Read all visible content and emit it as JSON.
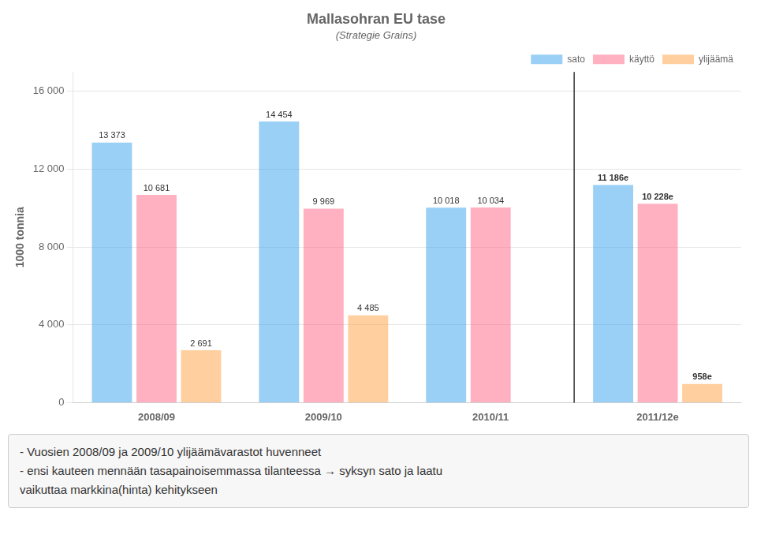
{
  "chart_data": {
    "type": "bar",
    "title": "Mallasohran EU tase",
    "subtitle": "(Strategie Grains)",
    "ylabel": "1000 tonnia",
    "categories": [
      "2008/09",
      "2009/10",
      "2010/11",
      "2011/12e"
    ],
    "series": [
      {
        "name": "sato",
        "values": [
          13373,
          14454,
          10018,
          11186
        ],
        "value_labels": [
          "13 373",
          "14 454",
          "10 018",
          "11 186e"
        ]
      },
      {
        "name": "käyttö",
        "values": [
          10681,
          9969,
          10034,
          10228
        ],
        "value_labels": [
          "10 681",
          "9 969",
          "10 034",
          "10 228e"
        ]
      },
      {
        "name": "ylijäämä",
        "values": [
          2691,
          4485,
          0,
          958
        ],
        "value_labels": [
          "2 691",
          "4 485",
          null,
          "958e"
        ]
      }
    ],
    "ylim": [
      0,
      17000
    ],
    "yticks": [
      0,
      {
        "value": 4000,
        "label": "4 000"
      },
      {
        "value": 8000,
        "label": "8 000"
      },
      {
        "value": 12000,
        "label": "12 000"
      },
      {
        "value": 16000,
        "label": "16 000"
      }
    ],
    "grid": true,
    "legend": "upper right",
    "data_labels": true,
    "annotations": [
      "- Vuosien 2008/09 ja 2009/10 ylijäämävarastot huvenneet",
      "- ensi kauteen mennään tasapainoisemmassa tilanteessa → syksyn sato ja laatu",
      "vaikuttaa markkina(hinta) kehitykseen"
    ]
  }
}
